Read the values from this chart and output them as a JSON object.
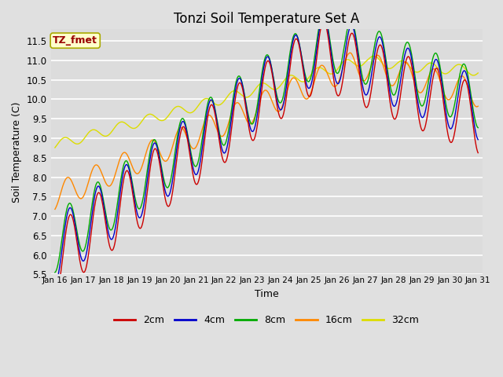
{
  "title": "Tonzi Soil Temperature Set A",
  "xlabel": "Time",
  "ylabel": "Soil Temperature (C)",
  "ylim": [
    5.5,
    11.8
  ],
  "bg_color": "#d8d8d8",
  "plot_bg_color": "#dcdcdc",
  "line_colors": {
    "2cm": "#cc0000",
    "4cm": "#0000cc",
    "8cm": "#00aa00",
    "16cm": "#ff8800",
    "32cm": "#dddd00"
  },
  "tick_labels": [
    "Jan 16",
    "Jan 17",
    "Jan 18",
    "Jan 19",
    "Jan 20",
    "Jan 21",
    "Jan 22",
    "Jan 23",
    "Jan 24",
    "Jan 25",
    "Jan 26",
    "Jan 27",
    "Jan 28",
    "Jan 29",
    "Jan 30",
    "Jan 31"
  ],
  "annotation_text": "TZ_fmet",
  "annotation_color": "#990000",
  "annotation_bg": "#ffffcc",
  "legend_labels": [
    "2cm",
    "4cm",
    "8cm",
    "16cm",
    "32cm"
  ]
}
